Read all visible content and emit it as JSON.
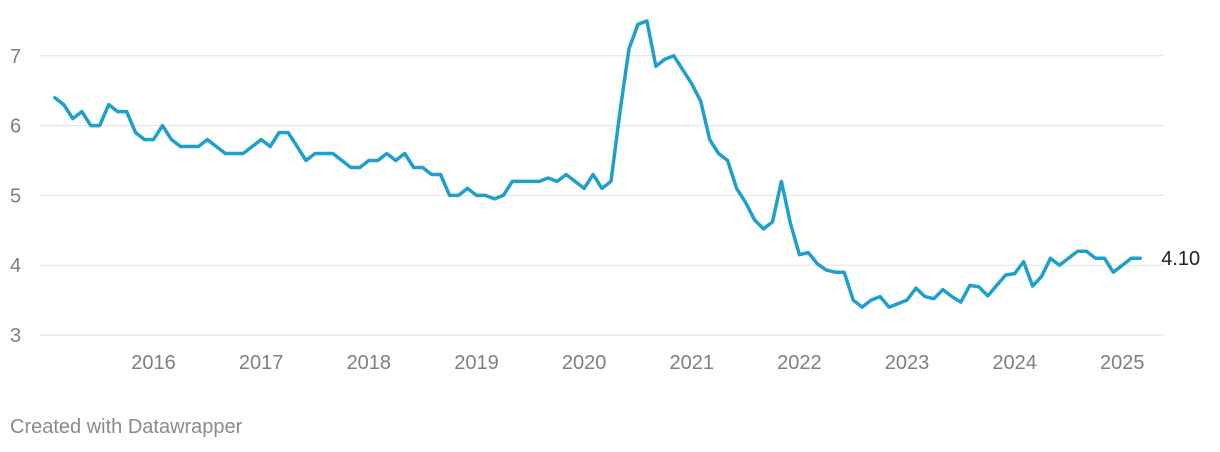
{
  "chart_data": {
    "type": "line",
    "title": "",
    "xlabel": "",
    "ylabel": "",
    "x_ticks": [
      "2016",
      "2017",
      "2018",
      "2019",
      "2020",
      "2021",
      "2022",
      "2023",
      "2024",
      "2025"
    ],
    "y_ticks": [
      "3",
      "4",
      "5",
      "6",
      "7"
    ],
    "xlim": [
      "2015-01",
      "2025-03"
    ],
    "ylim": [
      2.8,
      7.6
    ],
    "grid": "horizontal",
    "line_color": "#1fa0cc",
    "end_label": "4.10",
    "series": [
      {
        "color": "#1fa0cc",
        "points": [
          [
            "2015-02",
            6.4
          ],
          [
            "2015-03",
            6.3
          ],
          [
            "2015-04",
            6.1
          ],
          [
            "2015-05",
            6.2
          ],
          [
            "2015-06",
            6.0
          ],
          [
            "2015-07",
            6.0
          ],
          [
            "2015-08",
            6.3
          ],
          [
            "2015-09",
            6.2
          ],
          [
            "2015-10",
            6.2
          ],
          [
            "2015-11",
            5.9
          ],
          [
            "2015-12",
            5.8
          ],
          [
            "2016-01",
            5.8
          ],
          [
            "2016-02",
            6.0
          ],
          [
            "2016-03",
            5.8
          ],
          [
            "2016-04",
            5.7
          ],
          [
            "2016-05",
            5.7
          ],
          [
            "2016-06",
            5.7
          ],
          [
            "2016-07",
            5.8
          ],
          [
            "2016-08",
            5.7
          ],
          [
            "2016-09",
            5.6
          ],
          [
            "2016-10",
            5.6
          ],
          [
            "2016-11",
            5.6
          ],
          [
            "2016-12",
            5.7
          ],
          [
            "2017-01",
            5.8
          ],
          [
            "2017-02",
            5.7
          ],
          [
            "2017-03",
            5.9
          ],
          [
            "2017-04",
            5.9
          ],
          [
            "2017-05",
            5.7
          ],
          [
            "2017-06",
            5.5
          ],
          [
            "2017-07",
            5.6
          ],
          [
            "2017-08",
            5.6
          ],
          [
            "2017-09",
            5.6
          ],
          [
            "2017-10",
            5.5
          ],
          [
            "2017-11",
            5.4
          ],
          [
            "2017-12",
            5.4
          ],
          [
            "2018-01",
            5.5
          ],
          [
            "2018-02",
            5.5
          ],
          [
            "2018-03",
            5.6
          ],
          [
            "2018-04",
            5.5
          ],
          [
            "2018-05",
            5.6
          ],
          [
            "2018-06",
            5.4
          ],
          [
            "2018-07",
            5.4
          ],
          [
            "2018-08",
            5.3
          ],
          [
            "2018-09",
            5.3
          ],
          [
            "2018-10",
            5.0
          ],
          [
            "2018-11",
            5.0
          ],
          [
            "2018-12",
            5.1
          ],
          [
            "2019-01",
            5.0
          ],
          [
            "2019-02",
            5.0
          ],
          [
            "2019-03",
            4.95
          ],
          [
            "2019-04",
            5.0
          ],
          [
            "2019-05",
            5.2
          ],
          [
            "2019-06",
            5.2
          ],
          [
            "2019-07",
            5.2
          ],
          [
            "2019-08",
            5.2
          ],
          [
            "2019-09",
            5.25
          ],
          [
            "2019-10",
            5.2
          ],
          [
            "2019-11",
            5.3
          ],
          [
            "2019-12",
            5.2
          ],
          [
            "2020-01",
            5.1
          ],
          [
            "2020-02",
            5.3
          ],
          [
            "2020-03",
            5.1
          ],
          [
            "2020-04",
            5.2
          ],
          [
            "2020-05",
            6.2
          ],
          [
            "2020-06",
            7.1
          ],
          [
            "2020-07",
            7.45
          ],
          [
            "2020-08",
            7.5
          ],
          [
            "2020-09",
            6.85
          ],
          [
            "2020-10",
            6.95
          ],
          [
            "2020-11",
            7.0
          ],
          [
            "2020-12",
            6.8
          ],
          [
            "2021-01",
            6.6
          ],
          [
            "2021-02",
            6.35
          ],
          [
            "2021-03",
            5.8
          ],
          [
            "2021-04",
            5.6
          ],
          [
            "2021-05",
            5.5
          ],
          [
            "2021-06",
            5.1
          ],
          [
            "2021-07",
            4.9
          ],
          [
            "2021-08",
            4.65
          ],
          [
            "2021-09",
            4.52
          ],
          [
            "2021-10",
            4.62
          ],
          [
            "2021-11",
            5.2
          ],
          [
            "2021-12",
            4.6
          ],
          [
            "2022-01",
            4.15
          ],
          [
            "2022-02",
            4.18
          ],
          [
            "2022-03",
            4.02
          ],
          [
            "2022-04",
            3.93
          ],
          [
            "2022-05",
            3.9
          ],
          [
            "2022-06",
            3.9
          ],
          [
            "2022-07",
            3.5
          ],
          [
            "2022-08",
            3.4
          ],
          [
            "2022-09",
            3.5
          ],
          [
            "2022-10",
            3.55
          ],
          [
            "2022-11",
            3.4
          ],
          [
            "2022-12",
            3.45
          ],
          [
            "2023-01",
            3.5
          ],
          [
            "2023-02",
            3.67
          ],
          [
            "2023-03",
            3.55
          ],
          [
            "2023-04",
            3.52
          ],
          [
            "2023-05",
            3.65
          ],
          [
            "2023-06",
            3.55
          ],
          [
            "2023-07",
            3.47
          ],
          [
            "2023-08",
            3.71
          ],
          [
            "2023-09",
            3.69
          ],
          [
            "2023-10",
            3.56
          ],
          [
            "2023-11",
            3.71
          ],
          [
            "2023-12",
            3.86
          ],
          [
            "2024-01",
            3.88
          ],
          [
            "2024-02",
            4.05
          ],
          [
            "2024-03",
            3.7
          ],
          [
            "2024-04",
            3.84
          ],
          [
            "2024-05",
            4.1
          ],
          [
            "2024-06",
            4.0
          ],
          [
            "2024-07",
            4.1
          ],
          [
            "2024-08",
            4.2
          ],
          [
            "2024-09",
            4.2
          ],
          [
            "2024-10",
            4.1
          ],
          [
            "2024-11",
            4.1
          ],
          [
            "2024-12",
            3.9
          ],
          [
            "2025-01",
            4.0
          ],
          [
            "2025-02",
            4.1
          ],
          [
            "2025-03",
            4.1
          ]
        ]
      }
    ]
  },
  "footer": {
    "credit": "Created with Datawrapper"
  }
}
